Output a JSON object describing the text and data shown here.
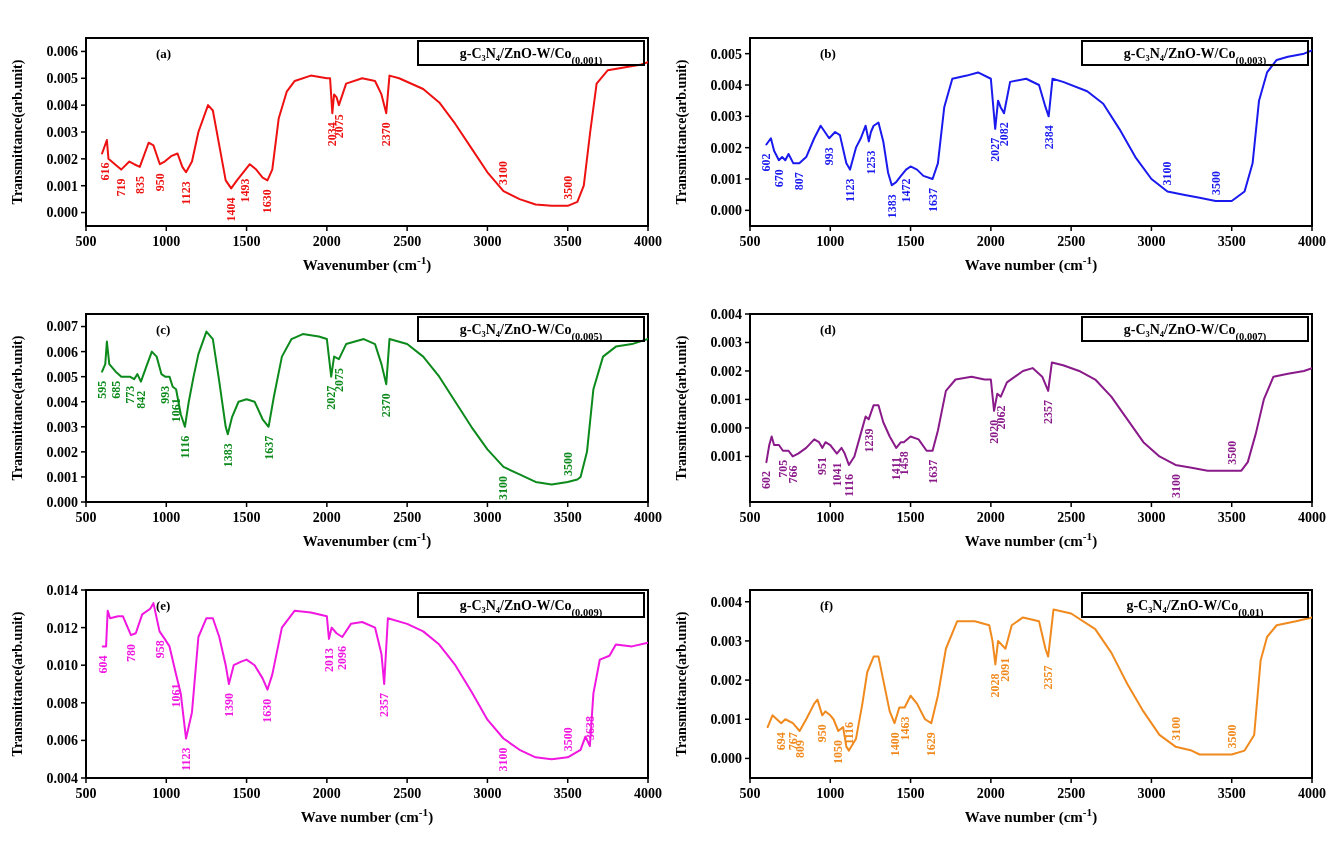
{
  "chart_data": [
    {
      "type": "line",
      "title": "(a)",
      "subtitle": "g-C₃N₄/ZnO-W/Co$_{(0.001)}$",
      "xlabel": "Wavenumber (cm$^{-1}$)",
      "ylabel": "Transmittance(arb.unit)",
      "xlim": [
        500,
        4000
      ],
      "xticks": [
        500,
        1000,
        1500,
        2000,
        2500,
        3000,
        3500,
        4000
      ],
      "ylim": [
        -0.0005,
        0.0065
      ],
      "yticks": [
        {
          "value": 0,
          "label": "0.000"
        },
        0.001,
        0.002,
        0.003,
        0.004,
        0.005,
        0.006
      ],
      "series": [
        {
          "color": "#ee1111",
          "x": [
            600,
            630,
            640,
            680,
            719,
            770,
            800,
            835,
            890,
            920,
            960,
            990,
            1030,
            1070,
            1100,
            1123,
            1160,
            1200,
            1260,
            1290,
            1330,
            1370,
            1404,
            1440,
            1493,
            1520,
            1560,
            1600,
            1630,
            1660,
            1700,
            1750,
            1800,
            1900,
            2000,
            2020,
            2034,
            2045,
            2060,
            2075,
            2120,
            2220,
            2300,
            2340,
            2370,
            2390,
            2450,
            2600,
            2700,
            2800,
            2900,
            3000,
            3100,
            3200,
            3300,
            3400,
            3500,
            3560,
            3600,
            3640,
            3680,
            3750,
            3850,
            3950,
            4000
          ],
          "values": [
            0.0022,
            0.0027,
            0.002,
            0.0018,
            0.0016,
            0.0019,
            0.0018,
            0.0017,
            0.0026,
            0.0025,
            0.0018,
            0.0019,
            0.0021,
            0.0022,
            0.0017,
            0.0015,
            0.0019,
            0.003,
            0.004,
            0.0038,
            0.0025,
            0.0012,
            0.0009,
            0.0012,
            0.0016,
            0.0018,
            0.0016,
            0.0013,
            0.0012,
            0.0016,
            0.0035,
            0.0045,
            0.0049,
            0.0051,
            0.005,
            0.005,
            0.0037,
            0.0044,
            0.0043,
            0.004,
            0.0048,
            0.005,
            0.0049,
            0.0044,
            0.0037,
            0.0051,
            0.005,
            0.0046,
            0.0041,
            0.0033,
            0.0024,
            0.0015,
            0.0008,
            0.0005,
            0.0003,
            0.00025,
            0.00025,
            0.0004,
            0.001,
            0.003,
            0.0048,
            0.0053,
            0.0054,
            0.0055,
            0.0056
          ]
        }
      ],
      "annotations": [
        {
          "text": "616",
          "x": 616,
          "y": 0.0022
        },
        {
          "text": "719",
          "x": 719,
          "y": 0.0016
        },
        {
          "text": "835",
          "x": 835,
          "y": 0.0017
        },
        {
          "text": "950",
          "x": 960,
          "y": 0.0018
        },
        {
          "text": "1123",
          "x": 1123,
          "y": 0.0015
        },
        {
          "text": "1404",
          "x": 1404,
          "y": 0.0009
        },
        {
          "text": "1493",
          "x": 1493,
          "y": 0.0016
        },
        {
          "text": "1630",
          "x": 1630,
          "y": 0.0012
        },
        {
          "text": "2034",
          "x": 2034,
          "y": 0.0037
        },
        {
          "text": "2075",
          "x": 2075,
          "y": 0.004
        },
        {
          "text": "2370",
          "x": 2370,
          "y": 0.0037
        },
        {
          "text": "3100",
          "x": 3100,
          "y": 0.0008
        },
        {
          "text": "3500",
          "x": 3500,
          "y": 0.00025
        }
      ]
    },
    {
      "type": "line",
      "title": "(b)",
      "subtitle": "g-C₃N₄/ZnO-W/Co$_{(0.003)}$",
      "xlabel": "Wave number (cm$^{-1}$)",
      "ylabel": "Transmittance(arb.unit)",
      "xlim": [
        500,
        4000
      ],
      "xticks": [
        500,
        1000,
        1500,
        2000,
        2500,
        3000,
        3500,
        4000
      ],
      "ylim": [
        -0.0005,
        0.0055
      ],
      "yticks": [
        {
          "value": 0,
          "label": "0.000"
        },
        0.001,
        0.002,
        0.003,
        0.004,
        0.005
      ],
      "series": [
        {
          "color": "#1a1aee",
          "x": [
            602,
            630,
            650,
            680,
            700,
            720,
            740,
            770,
            807,
            850,
            900,
            940,
            993,
            1030,
            1060,
            1100,
            1123,
            1160,
            1190,
            1220,
            1240,
            1253,
            1270,
            1300,
            1330,
            1360,
            1383,
            1410,
            1440,
            1472,
            1500,
            1540,
            1580,
            1637,
            1670,
            1710,
            1760,
            1850,
            1920,
            2000,
            2027,
            2045,
            2060,
            2082,
            2120,
            2220,
            2300,
            2340,
            2360,
            2384,
            2450,
            2600,
            2700,
            2800,
            2900,
            3000,
            3100,
            3200,
            3300,
            3400,
            3500,
            3580,
            3630,
            3670,
            3720,
            3780,
            3850,
            3950,
            4000
          ],
          "values": [
            0.0021,
            0.0023,
            0.0019,
            0.0016,
            0.0017,
            0.0016,
            0.0018,
            0.0015,
            0.0015,
            0.0017,
            0.0023,
            0.0027,
            0.0023,
            0.0025,
            0.0024,
            0.0015,
            0.0013,
            0.002,
            0.0023,
            0.0027,
            0.0022,
            0.0025,
            0.0027,
            0.0028,
            0.0022,
            0.0012,
            0.0008,
            0.0009,
            0.0011,
            0.0013,
            0.0014,
            0.0013,
            0.0011,
            0.001,
            0.0015,
            0.0033,
            0.0042,
            0.0043,
            0.0044,
            0.0042,
            0.0026,
            0.0035,
            0.0033,
            0.0031,
            0.0041,
            0.0042,
            0.004,
            0.0033,
            0.003,
            0.0042,
            0.0041,
            0.0038,
            0.0034,
            0.0026,
            0.0017,
            0.001,
            0.0006,
            0.0005,
            0.0004,
            0.0003,
            0.0003,
            0.0006,
            0.0015,
            0.0035,
            0.0044,
            0.0048,
            0.0049,
            0.005,
            0.0051
          ]
        }
      ],
      "annotations": [
        {
          "text": "602",
          "x": 602,
          "y": 0.0021
        },
        {
          "text": "670",
          "x": 680,
          "y": 0.0016
        },
        {
          "text": "807",
          "x": 807,
          "y": 0.0015
        },
        {
          "text": "993",
          "x": 993,
          "y": 0.0023
        },
        {
          "text": "1123",
          "x": 1123,
          "y": 0.0013
        },
        {
          "text": "1253",
          "x": 1253,
          "y": 0.0022
        },
        {
          "text": "1383",
          "x": 1383,
          "y": 0.0008
        },
        {
          "text": "1472",
          "x": 1472,
          "y": 0.0013
        },
        {
          "text": "1637",
          "x": 1637,
          "y": 0.001
        },
        {
          "text": "2027",
          "x": 2027,
          "y": 0.0026
        },
        {
          "text": "2082",
          "x": 2082,
          "y": 0.0031
        },
        {
          "text": "2384",
          "x": 2360,
          "y": 0.003
        },
        {
          "text": "3100",
          "x": 3100,
          "y": 0.0006
        },
        {
          "text": "3500",
          "x": 3400,
          "y": 0.0003
        }
      ]
    },
    {
      "type": "line",
      "title": "(c)",
      "subtitle": "g-C₃N₄/ZnO-W/Co$_{(0.005)}$",
      "xlabel": "Wavenumber (cm$^{-1}$)",
      "ylabel": "Transmittance(arb.unit)",
      "xlim": [
        500,
        4000
      ],
      "xticks": [
        500,
        1000,
        1500,
        2000,
        2500,
        3000,
        3500,
        4000
      ],
      "ylim": [
        0,
        0.0075
      ],
      "yticks": [
        {
          "value": 0,
          "label": "0.000"
        },
        0.001,
        0.002,
        0.003,
        0.004,
        0.005,
        0.006,
        0.007
      ],
      "series": [
        {
          "color": "#0c8a1c",
          "x": [
            600,
            620,
            630,
            645,
            685,
            720,
            773,
            800,
            820,
            842,
            870,
            910,
            940,
            970,
            993,
            1020,
            1040,
            1061,
            1090,
            1116,
            1140,
            1170,
            1200,
            1250,
            1290,
            1330,
            1370,
            1383,
            1410,
            1450,
            1500,
            1550,
            1600,
            1637,
            1670,
            1720,
            1780,
            1850,
            1950,
            2000,
            2027,
            2045,
            2075,
            2120,
            2230,
            2300,
            2340,
            2370,
            2390,
            2500,
            2600,
            2700,
            2800,
            2900,
            3000,
            3100,
            3200,
            3300,
            3400,
            3500,
            3560,
            3580,
            3620,
            3660,
            3720,
            3800,
            3900,
            4000
          ],
          "values": [
            0.0052,
            0.0055,
            0.0064,
            0.0055,
            0.0052,
            0.005,
            0.005,
            0.0049,
            0.0051,
            0.0048,
            0.0053,
            0.006,
            0.0058,
            0.0051,
            0.005,
            0.005,
            0.0046,
            0.0045,
            0.0035,
            0.003,
            0.004,
            0.005,
            0.0059,
            0.0068,
            0.0065,
            0.0048,
            0.003,
            0.0027,
            0.0034,
            0.004,
            0.0041,
            0.004,
            0.0033,
            0.003,
            0.0042,
            0.0058,
            0.0065,
            0.0067,
            0.0066,
            0.0065,
            0.005,
            0.0058,
            0.0057,
            0.0063,
            0.0065,
            0.0063,
            0.0055,
            0.0047,
            0.0065,
            0.0063,
            0.0058,
            0.005,
            0.004,
            0.003,
            0.0021,
            0.0014,
            0.0011,
            0.0008,
            0.0007,
            0.0008,
            0.0009,
            0.001,
            0.002,
            0.0045,
            0.0058,
            0.0062,
            0.0063,
            0.0065
          ]
        }
      ],
      "annotations": [
        {
          "text": "595",
          "x": 600,
          "y": 0.0052
        },
        {
          "text": "685",
          "x": 685,
          "y": 0.0052
        },
        {
          "text": "773",
          "x": 773,
          "y": 0.005
        },
        {
          "text": "842",
          "x": 842,
          "y": 0.0048
        },
        {
          "text": "993",
          "x": 993,
          "y": 0.005
        },
        {
          "text": "1061",
          "x": 1061,
          "y": 0.0045
        },
        {
          "text": "1116",
          "x": 1116,
          "y": 0.003
        },
        {
          "text": "1383",
          "x": 1383,
          "y": 0.0027
        },
        {
          "text": "1637",
          "x": 1637,
          "y": 0.003
        },
        {
          "text": "2027",
          "x": 2027,
          "y": 0.005
        },
        {
          "text": "2075",
          "x": 2075,
          "y": 0.0057
        },
        {
          "text": "2370",
          "x": 2370,
          "y": 0.0047
        },
        {
          "text": "3100",
          "x": 3100,
          "y": 0.0014
        },
        {
          "text": "3500",
          "x": 3500,
          "y": 0.0008
        }
      ]
    },
    {
      "type": "line",
      "title": "(d)",
      "subtitle": "g-C₃N₄/ZnO-W/Co$_{(0.007)}$",
      "xlabel": "Wave number (cm$^{-1}$)",
      "ylabel": "Transmittance(arb.unit)",
      "xlim": [
        500,
        4000
      ],
      "xticks": [
        500,
        1000,
        1500,
        2000,
        2500,
        3000,
        3500,
        4000
      ],
      "ylim": [
        -0.0026,
        0.004
      ],
      "yticks": [
        {
          "value": -0.001,
          "label": "0.001"
        },
        {
          "value": 0,
          "label": "0.000"
        },
        0.001,
        0.002,
        0.003,
        0.004
      ],
      "series": [
        {
          "color": "#8a1a8a",
          "x": [
            602,
            620,
            635,
            650,
            680,
            705,
            740,
            766,
            800,
            850,
            900,
            930,
            951,
            970,
            1000,
            1041,
            1070,
            1090,
            1116,
            1150,
            1190,
            1220,
            1239,
            1270,
            1300,
            1330,
            1370,
            1411,
            1440,
            1458,
            1500,
            1550,
            1600,
            1637,
            1670,
            1720,
            1780,
            1880,
            1960,
            2000,
            2020,
            2040,
            2062,
            2100,
            2200,
            2260,
            2320,
            2357,
            2380,
            2450,
            2550,
            2650,
            2750,
            2850,
            2950,
            3050,
            3150,
            3250,
            3350,
            3450,
            3560,
            3600,
            3650,
            3700,
            3760,
            3850,
            3950,
            4000
          ],
          "values": [
            -0.0012,
            -0.0006,
            -0.0003,
            -0.0006,
            -0.0006,
            -0.0008,
            -0.0008,
            -0.001,
            -0.0009,
            -0.0007,
            -0.0004,
            -0.0005,
            -0.0007,
            -0.0005,
            -0.0006,
            -0.0009,
            -0.0007,
            -0.0009,
            -0.0013,
            -0.001,
            -0.0002,
            0.0004,
            0.0003,
            0.0008,
            0.0008,
            0.0002,
            -0.0003,
            -0.0007,
            -0.0005,
            -0.0005,
            -0.0003,
            -0.0004,
            -0.0008,
            -0.0008,
            -0.0001,
            0.0013,
            0.0017,
            0.0018,
            0.0017,
            0.0017,
            0.0006,
            0.0012,
            0.0011,
            0.0016,
            0.002,
            0.0021,
            0.0018,
            0.0013,
            0.0023,
            0.0022,
            0.002,
            0.0017,
            0.0011,
            0.0003,
            -0.0005,
            -0.001,
            -0.0013,
            -0.0014,
            -0.0015,
            -0.0015,
            -0.0015,
            -0.0012,
            -0.0002,
            0.001,
            0.0018,
            0.0019,
            0.002,
            0.0021
          ]
        }
      ],
      "annotations": [
        {
          "text": "602",
          "x": 602,
          "y": -0.0012
        },
        {
          "text": "705",
          "x": 705,
          "y": -0.0008
        },
        {
          "text": "766",
          "x": 766,
          "y": -0.001
        },
        {
          "text": "951",
          "x": 951,
          "y": -0.0007
        },
        {
          "text": "1041",
          "x": 1041,
          "y": -0.0009
        },
        {
          "text": "1116",
          "x": 1116,
          "y": -0.0013
        },
        {
          "text": "1239",
          "x": 1239,
          "y": 0.0003
        },
        {
          "text": "1411",
          "x": 1411,
          "y": -0.0007
        },
        {
          "text": "1458",
          "x": 1458,
          "y": -0.0005
        },
        {
          "text": "1637",
          "x": 1637,
          "y": -0.0008
        },
        {
          "text": "2020",
          "x": 2020,
          "y": 0.0006
        },
        {
          "text": "2062",
          "x": 2062,
          "y": 0.0011
        },
        {
          "text": "2357",
          "x": 2357,
          "y": 0.0013
        },
        {
          "text": "3100",
          "x": 3150,
          "y": -0.0013
        },
        {
          "text": "3500",
          "x": 3500,
          "y": -0.0015
        }
      ]
    },
    {
      "type": "line",
      "title": "(e)",
      "subtitle": "g-C₃N₄/ZnO-W/Co$_{(0.009)}$",
      "xlabel": "Wave number (cm$^{-1}$)",
      "ylabel": "Transmittance(arb.unit)",
      "xlim": [
        500,
        4000
      ],
      "xticks": [
        500,
        1000,
        1500,
        2000,
        2500,
        3000,
        3500,
        4000
      ],
      "ylim": [
        0.004,
        0.014
      ],
      "yticks": [
        0.004,
        0.006,
        0.008,
        {
          "value": 0.01,
          "label": "0.010"
        },
        0.012,
        0.014
      ],
      "series": [
        {
          "color": "#f018e0",
          "x": [
            604,
            625,
            635,
            650,
            700,
            730,
            780,
            810,
            850,
            900,
            920,
            958,
            990,
            1020,
            1061,
            1090,
            1123,
            1160,
            1200,
            1250,
            1290,
            1330,
            1370,
            1390,
            1420,
            1470,
            1500,
            1550,
            1600,
            1630,
            1660,
            1720,
            1800,
            1900,
            2000,
            2013,
            2030,
            2060,
            2096,
            2150,
            2220,
            2300,
            2340,
            2357,
            2380,
            2500,
            2600,
            2700,
            2800,
            2900,
            3000,
            3100,
            3200,
            3300,
            3400,
            3500,
            3580,
            3610,
            3638,
            3660,
            3700,
            3760,
            3800,
            3900,
            4000
          ],
          "values": [
            0.011,
            0.011,
            0.0129,
            0.0125,
            0.0126,
            0.0126,
            0.0116,
            0.0117,
            0.0127,
            0.013,
            0.0133,
            0.0118,
            0.0114,
            0.011,
            0.0095,
            0.0085,
            0.0061,
            0.0075,
            0.0115,
            0.0125,
            0.0125,
            0.0115,
            0.01,
            0.009,
            0.01,
            0.0102,
            0.0103,
            0.01,
            0.0093,
            0.0087,
            0.0095,
            0.012,
            0.0129,
            0.0128,
            0.0126,
            0.0114,
            0.012,
            0.0117,
            0.0115,
            0.0122,
            0.0123,
            0.012,
            0.0106,
            0.009,
            0.0125,
            0.0122,
            0.0118,
            0.0111,
            0.01,
            0.0086,
            0.0071,
            0.0061,
            0.0055,
            0.0051,
            0.005,
            0.0051,
            0.0055,
            0.0062,
            0.0057,
            0.0085,
            0.0103,
            0.0105,
            0.0111,
            0.011,
            0.0112
          ]
        }
      ],
      "annotations": [
        {
          "text": "604",
          "x": 604,
          "y": 0.011
        },
        {
          "text": "780",
          "x": 780,
          "y": 0.0116
        },
        {
          "text": "958",
          "x": 958,
          "y": 0.0118
        },
        {
          "text": "1061",
          "x": 1061,
          "y": 0.0095
        },
        {
          "text": "1123",
          "x": 1123,
          "y": 0.0061
        },
        {
          "text": "1390",
          "x": 1390,
          "y": 0.009
        },
        {
          "text": "1630",
          "x": 1630,
          "y": 0.0087
        },
        {
          "text": "2013",
          "x": 2013,
          "y": 0.0114
        },
        {
          "text": "2096",
          "x": 2096,
          "y": 0.0115
        },
        {
          "text": "2357",
          "x": 2357,
          "y": 0.009
        },
        {
          "text": "3100",
          "x": 3100,
          "y": 0.0061
        },
        {
          "text": "3500",
          "x": 3500,
          "y": 0.0051
        },
        {
          "text": "3638",
          "x": 3638,
          "y": 0.0057
        }
      ]
    },
    {
      "type": "line",
      "title": "(f)",
      "subtitle": "g-C₃N₄/ZnO-W/Co$_{(0.01)}$",
      "xlabel": "Wave number (cm$^{-1}$)",
      "ylabel": "Transmittance(arb.unit)",
      "xlim": [
        500,
        4000
      ],
      "xticks": [
        500,
        1000,
        1500,
        2000,
        2500,
        3000,
        3500,
        4000
      ],
      "ylim": [
        -0.0005,
        0.0043
      ],
      "yticks": [
        {
          "value": 0,
          "label": "0.000"
        },
        0.001,
        0.002,
        0.003,
        0.004
      ],
      "series": [
        {
          "color": "#f08a1e",
          "x": [
            610,
            640,
            694,
            720,
            767,
            809,
            850,
            900,
            920,
            950,
            970,
            1000,
            1020,
            1050,
            1080,
            1100,
            1116,
            1160,
            1200,
            1230,
            1270,
            1300,
            1330,
            1370,
            1400,
            1430,
            1463,
            1500,
            1540,
            1590,
            1629,
            1670,
            1720,
            1790,
            1900,
            1990,
            2010,
            2028,
            2045,
            2091,
            2130,
            2200,
            2300,
            2340,
            2357,
            2390,
            2500,
            2650,
            2750,
            2850,
            2950,
            3050,
            3150,
            3250,
            3300,
            3400,
            3500,
            3580,
            3640,
            3680,
            3720,
            3780,
            3900,
            4000
          ],
          "values": [
            0.0008,
            0.0011,
            0.0009,
            0.001,
            0.0009,
            0.0007,
            0.001,
            0.0014,
            0.0015,
            0.0011,
            0.0012,
            0.0011,
            0.001,
            0.0007,
            0.0008,
            0.0003,
            0.0002,
            0.0005,
            0.0014,
            0.0022,
            0.0026,
            0.0026,
            0.002,
            0.0012,
            0.0009,
            0.0013,
            0.0013,
            0.0016,
            0.0014,
            0.001,
            0.0009,
            0.0016,
            0.0028,
            0.0035,
            0.0035,
            0.0034,
            0.003,
            0.0024,
            0.003,
            0.0028,
            0.0034,
            0.0036,
            0.0035,
            0.0028,
            0.0026,
            0.0038,
            0.0037,
            0.0033,
            0.0027,
            0.0019,
            0.0012,
            0.0006,
            0.0003,
            0.0002,
            0.0001,
            0.0001,
            0.0001,
            0.0002,
            0.0006,
            0.0025,
            0.0031,
            0.0034,
            0.0035,
            0.0036
          ]
        }
      ],
      "annotations": [
        {
          "text": "694",
          "x": 694,
          "y": 0.0009
        },
        {
          "text": "767",
          "x": 767,
          "y": 0.0009
        },
        {
          "text": "809",
          "x": 809,
          "y": 0.0007
        },
        {
          "text": "950",
          "x": 950,
          "y": 0.0011
        },
        {
          "text": "1050",
          "x": 1050,
          "y": 0.0007
        },
        {
          "text": "1116",
          "x": 1116,
          "y": 0.0002
        },
        {
          "text": "1400",
          "x": 1400,
          "y": 0.0009
        },
        {
          "text": "1463",
          "x": 1463,
          "y": 0.0013
        },
        {
          "text": "1629",
          "x": 1629,
          "y": 0.0009
        },
        {
          "text": "2028",
          "x": 2028,
          "y": 0.0024
        },
        {
          "text": "2091",
          "x": 2091,
          "y": 0.0028
        },
        {
          "text": "2357",
          "x": 2357,
          "y": 0.0026
        },
        {
          "text": "3100",
          "x": 3150,
          "y": 0.0003
        },
        {
          "text": "3500",
          "x": 3500,
          "y": 0.0001
        }
      ]
    }
  ]
}
